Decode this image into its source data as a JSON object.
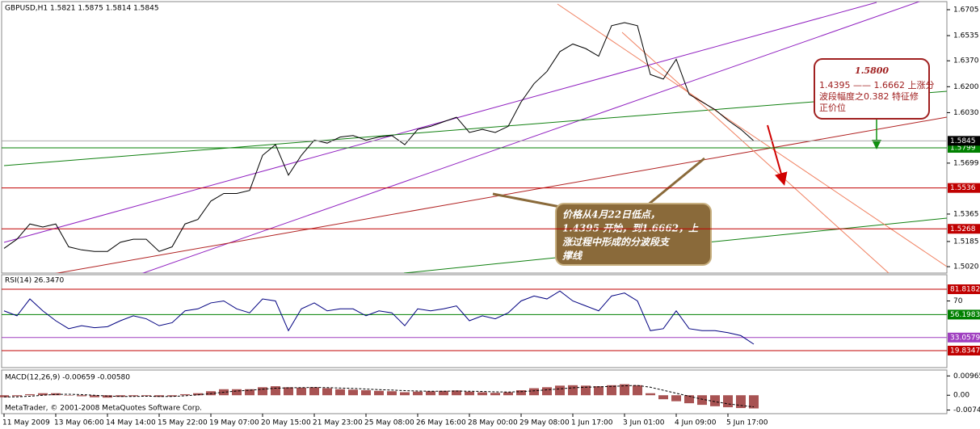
{
  "chart_data": [
    {
      "type": "line",
      "title": "GBPUSD,H1  1.5821 1.5875 1.5814 1.5845",
      "color": "#000000",
      "x": [
        0,
        1,
        2,
        3,
        4,
        5,
        6,
        7,
        8,
        9,
        10,
        11,
        12,
        13,
        14,
        15,
        16,
        17,
        18,
        19,
        20,
        21,
        22,
        23,
        24,
        25,
        26,
        27,
        28,
        29,
        30,
        31,
        32,
        33,
        34,
        35,
        36,
        37,
        38,
        39,
        40,
        41,
        42,
        43,
        44,
        45,
        46,
        47,
        48,
        49,
        50,
        51,
        52,
        53,
        54,
        55,
        56,
        57,
        58
      ],
      "values": [
        1.514,
        1.52,
        1.53,
        1.528,
        1.53,
        1.515,
        1.513,
        1.512,
        1.512,
        1.518,
        1.52,
        1.52,
        1.512,
        1.515,
        1.53,
        1.533,
        1.545,
        1.55,
        1.55,
        1.552,
        1.575,
        1.582,
        1.562,
        1.575,
        1.585,
        1.583,
        1.587,
        1.588,
        1.585,
        1.587,
        1.588,
        1.582,
        1.592,
        1.594,
        1.597,
        1.6,
        1.59,
        1.592,
        1.59,
        1.594,
        1.61,
        1.622,
        1.63,
        1.643,
        1.648,
        1.645,
        1.64,
        1.66,
        1.662,
        1.66,
        1.628,
        1.625,
        1.638,
        1.615,
        1.61,
        1.605,
        1.598,
        1.592,
        1.5845
      ],
      "xlim": [
        0,
        73
      ],
      "xticks": [
        {
          "value": 0,
          "label": "11 May 2009"
        },
        {
          "value": 4,
          "label": "13 May 06:00"
        },
        {
          "value": 8,
          "label": "14 May 14:00"
        },
        {
          "value": 12,
          "label": "15 May 22:00"
        },
        {
          "value": 16,
          "label": "19 May 07:00"
        },
        {
          "value": 20,
          "label": "20 May 15:00"
        },
        {
          "value": 24,
          "label": "21 May 23:00"
        },
        {
          "value": 28,
          "label": "25 May 08:00"
        },
        {
          "value": 32,
          "label": "26 May 16:00"
        },
        {
          "value": 36,
          "label": "28 May 00:00"
        },
        {
          "value": 40,
          "label": "29 May 08:00"
        },
        {
          "value": 44,
          "label": "1 Jun 17:00"
        },
        {
          "value": 48,
          "label": "3 Jun 01:00"
        },
        {
          "value": 52,
          "label": "4 Jun 09:00"
        },
        {
          "value": 56,
          "label": "5 Jun 17:00"
        }
      ],
      "ylim": [
        1.4978,
        1.6758
      ],
      "yticks": [
        1.6705,
        1.6535,
        {
          "value": 1.637,
          "label": "1.6370"
        },
        {
          "value": 1.62,
          "label": "1.6200"
        },
        {
          "value": 1.603,
          "label": "1.6030"
        },
        1.5699,
        1.5365,
        1.5185,
        {
          "value": 1.502,
          "label": "1.5020"
        }
      ],
      "last": 1.5845,
      "levels": [
        1.5799,
        1.5536,
        1.5268
      ],
      "level_colors": [
        "#008000",
        "#c00000",
        "#c00000"
      ],
      "annotations": {
        "box_title": "1.5800",
        "box_lines": [
          "1.4395 —— 1.6662 上涨分",
          "波段幅度之0.382 特征修",
          "正价位"
        ],
        "callout_lines": [
          "价格从4月22日低点，",
          "1.4395 开始，到1.6662，上",
          "涨过程中形成的分波段支",
          "撑线"
        ]
      }
    },
    {
      "type": "line",
      "title": "RSI(14) 26.3470",
      "color": "#000080",
      "values": [
        60,
        55,
        72,
        60,
        50,
        42,
        45,
        43,
        44,
        50,
        55,
        52,
        45,
        48,
        60,
        62,
        68,
        70,
        62,
        58,
        72,
        70,
        40,
        62,
        68,
        60,
        62,
        62,
        55,
        60,
        58,
        45,
        62,
        60,
        62,
        65,
        50,
        55,
        52,
        58,
        70,
        75,
        72,
        80,
        70,
        65,
        60,
        75,
        78,
        70,
        40,
        42,
        60,
        42,
        40,
        40,
        38,
        35,
        26.347
      ],
      "ylim": [
        2.7,
        96.5
      ],
      "yticks": [
        70
      ],
      "levels": [
        81.8182,
        56.1983,
        33.0579,
        19.8347
      ],
      "level_colors": [
        "#c00000",
        "#008000",
        "#a040c0",
        "#c00000"
      ]
    },
    {
      "type": "bar",
      "title": "MACD(12,26,9) -0.00659 -0.00580",
      "color": "#8b1a1a",
      "values": [
        -0.001,
        -0.0005,
        0.0005,
        0.001,
        0.001,
        0,
        -0.0005,
        -0.001,
        -0.0012,
        -0.0008,
        -0.0005,
        -0.0004,
        -0.0008,
        -0.0006,
        0.0005,
        0.001,
        0.002,
        0.003,
        0.003,
        0.003,
        0.004,
        0.0045,
        0.004,
        0.0038,
        0.004,
        0.0035,
        0.003,
        0.0028,
        0.0025,
        0.0022,
        0.002,
        0.0015,
        0.0018,
        0.002,
        0.0022,
        0.0024,
        0.0018,
        0.0015,
        0.0012,
        0.0015,
        0.0025,
        0.0035,
        0.004,
        0.0048,
        0.005,
        0.0048,
        0.0045,
        0.005,
        0.0055,
        0.005,
        0.001,
        -0.002,
        -0.003,
        -0.004,
        -0.0048,
        -0.0055,
        -0.006,
        -0.0064,
        -0.00659
      ],
      "signal": [
        -0.0008,
        -0.0008,
        -0.0005,
        0,
        0.0004,
        0.0005,
        0.0003,
        0,
        -0.0004,
        -0.0006,
        -0.0006,
        -0.0005,
        -0.0006,
        -0.0006,
        -0.0003,
        0.0002,
        0.0008,
        0.0015,
        0.0021,
        0.0025,
        0.003,
        0.0035,
        0.0037,
        0.0038,
        0.0039,
        0.0038,
        0.0036,
        0.0034,
        0.0031,
        0.0028,
        0.0026,
        0.0023,
        0.0021,
        0.002,
        0.002,
        0.0021,
        0.002,
        0.0019,
        0.0017,
        0.0016,
        0.0018,
        0.0022,
        0.0027,
        0.0032,
        0.0037,
        0.004,
        0.0042,
        0.0044,
        0.0047,
        0.0049,
        0.004,
        0.0025,
        0.001,
        -0.0005,
        -0.002,
        -0.0032,
        -0.0043,
        -0.0051,
        -0.0058
      ],
      "ylim": [
        -0.0092,
        0.0126
      ],
      "yticks": [
        0.00965,
        {
          "value": 0,
          "label": "0.00"
        },
        -0.0074
      ],
      "footer": "MetaTrader, © 2001-2008 MetaQuotes Software Corp."
    }
  ]
}
